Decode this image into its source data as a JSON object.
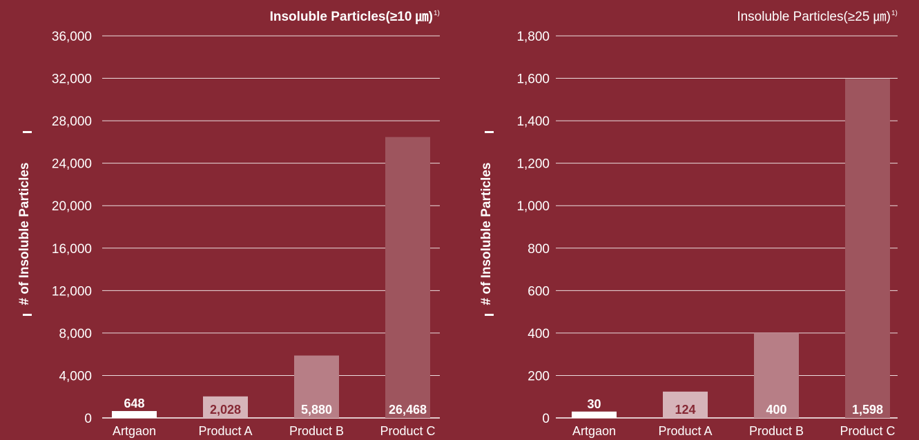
{
  "colors": {
    "background": "#862834",
    "text": "#ffffff",
    "label_dark": "#862834"
  },
  "chart_data": [
    {
      "type": "bar",
      "title": "Insoluble Particles(≥10 ㎛)",
      "title_sup": "1)",
      "ylabel": "# of Insoluble Particles",
      "categories": [
        "Artgaon",
        "Product A",
        "Product B",
        "Product C"
      ],
      "values": [
        648,
        2028,
        5880,
        26468
      ],
      "data_labels": [
        "648",
        "2,028",
        "5,880",
        "26,468"
      ],
      "bar_colors": [
        "#ffffff",
        "#d6b4b9",
        "#b77e86",
        "#9e555e"
      ],
      "label_colors": [
        "#862834",
        "#862834",
        "#ffffff",
        "#ffffff"
      ],
      "yticks": [
        0,
        4000,
        8000,
        12000,
        16000,
        20000,
        24000,
        28000,
        32000,
        36000
      ],
      "ytick_labels": [
        "0",
        "4,000",
        "8,000",
        "12,000",
        "16,000",
        "20,000",
        "24,000",
        "28,000",
        "32,000",
        "36,000"
      ],
      "ylim": [
        0,
        36000
      ],
      "grid": true
    },
    {
      "type": "bar",
      "title": "Insoluble Particles(≥25 ㎛)",
      "title_sup": "1)",
      "ylabel": "# of Insoluble Particles",
      "categories": [
        "Artgaon",
        "Product A",
        "Product B",
        "Product C"
      ],
      "values": [
        30,
        124,
        400,
        1598
      ],
      "data_labels": [
        "30",
        "124",
        "400",
        "1,598"
      ],
      "bar_colors": [
        "#ffffff",
        "#d6b4b9",
        "#b77e86",
        "#9e555e"
      ],
      "label_colors": [
        "#862834",
        "#862834",
        "#ffffff",
        "#ffffff"
      ],
      "yticks": [
        0,
        200,
        400,
        600,
        800,
        1000,
        1200,
        1400,
        1600,
        1800
      ],
      "ytick_labels": [
        "0",
        "200",
        "400",
        "600",
        "800",
        "1,000",
        "1,200",
        "1,400",
        "1,600",
        "1,800"
      ],
      "ylim": [
        0,
        1800
      ],
      "grid": true
    }
  ]
}
